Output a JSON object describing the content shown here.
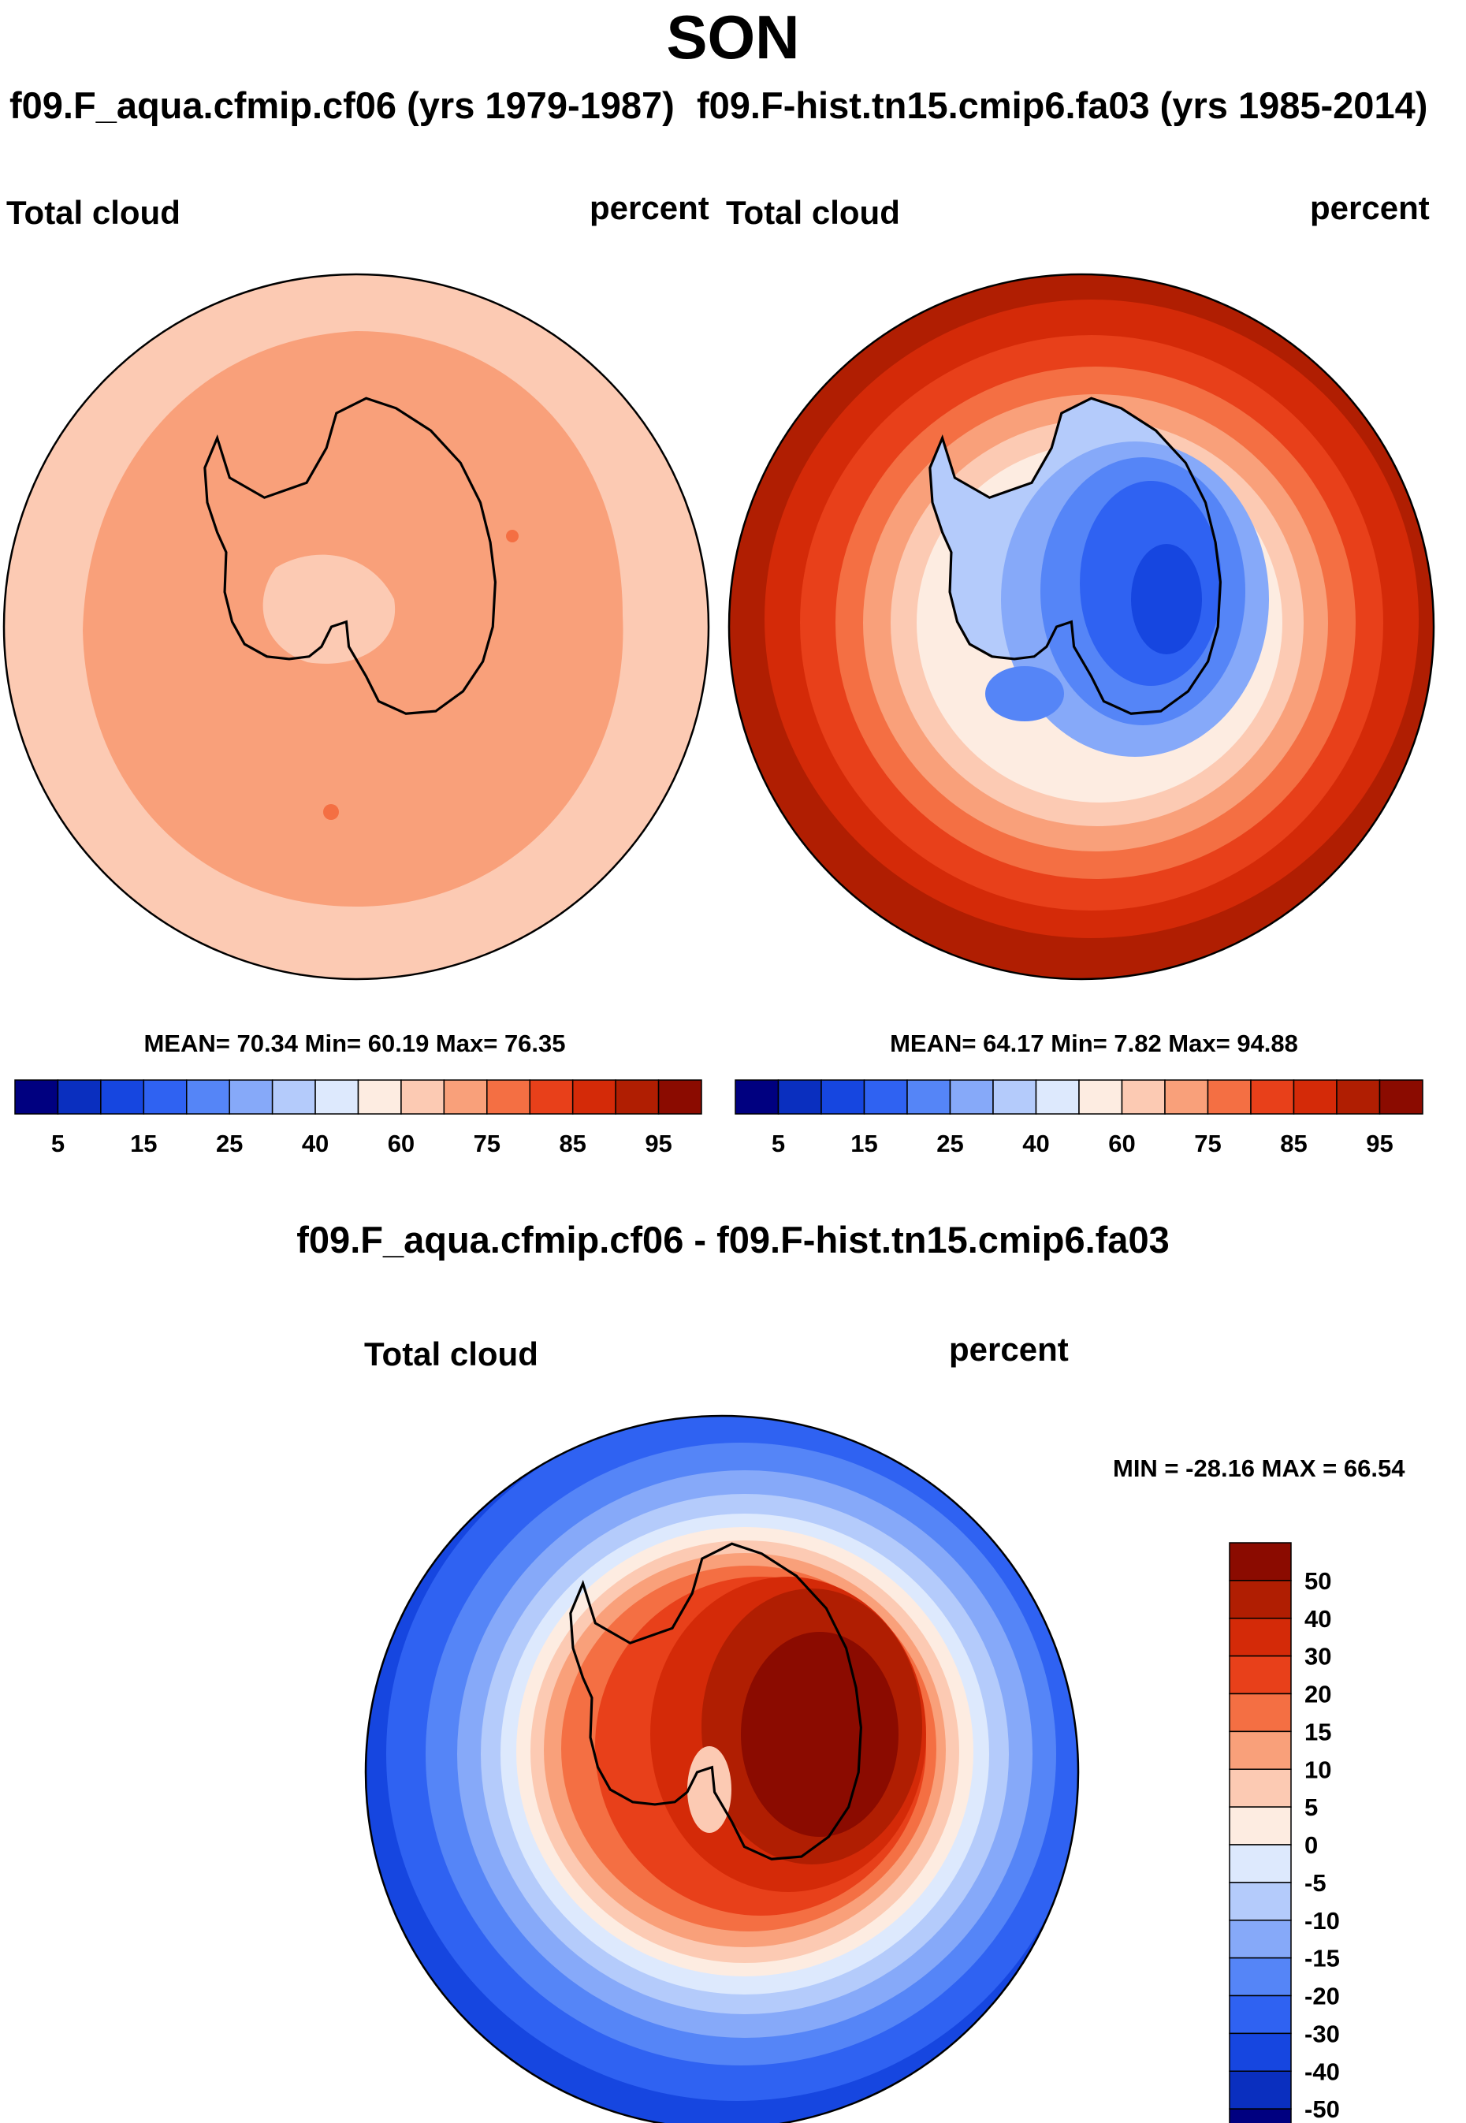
{
  "title": "SON",
  "panels": [
    {
      "id": "left",
      "case_label": "f09.F_aqua.cfmip.cf06 (yrs 1979-1987)",
      "variable": "Total cloud",
      "units": "percent",
      "stats": "MEAN=  70.34  Min=  60.19  Max=  76.35",
      "mean": 70.34,
      "min": 60.19,
      "max": 76.35
    },
    {
      "id": "right",
      "case_label": "f09.F-hist.tn15.cmip6.fa03 (yrs 1985-2014)",
      "variable": "Total cloud",
      "units": "percent",
      "stats": "MEAN=  64.17  Min=   7.82  Max=  94.88",
      "mean": 64.17,
      "min": 7.82,
      "max": 94.88
    }
  ],
  "colorbar_top": {
    "labels": [
      "5",
      "15",
      "25",
      "40",
      "60",
      "75",
      "85",
      "95"
    ],
    "colors": [
      "#000080",
      "#0a2fbf",
      "#1646e0",
      "#2f62f2",
      "#5585f7",
      "#86a9f9",
      "#b4cbfb",
      "#dde9fd",
      "#fdece1",
      "#fccab3",
      "#f9a07a",
      "#f46f43",
      "#e8401a",
      "#d42a08",
      "#b01e02",
      "#8b0b00"
    ]
  },
  "difference": {
    "title": "f09.F_aqua.cfmip.cf06 - f09.F-hist.tn15.cmip6.fa03",
    "variable": "Total cloud",
    "units": "percent",
    "minmax": "MIN = -28.16 MAX =  66.54",
    "min": -28.16,
    "max": 66.54,
    "colorbar": {
      "labels": [
        "50",
        "40",
        "30",
        "20",
        "15",
        "10",
        "5",
        "0",
        "-5",
        "-10",
        "-15",
        "-20",
        "-30",
        "-40",
        "-50"
      ],
      "colors": [
        "#8b0b00",
        "#b01e02",
        "#d42a08",
        "#e8401a",
        "#f46f43",
        "#f9a07a",
        "#fccab3",
        "#fdece1",
        "#dde9fd",
        "#b4cbfb",
        "#86a9f9",
        "#5585f7",
        "#2f62f2",
        "#1646e0",
        "#0a2fbf",
        "#000080"
      ]
    }
  }
}
